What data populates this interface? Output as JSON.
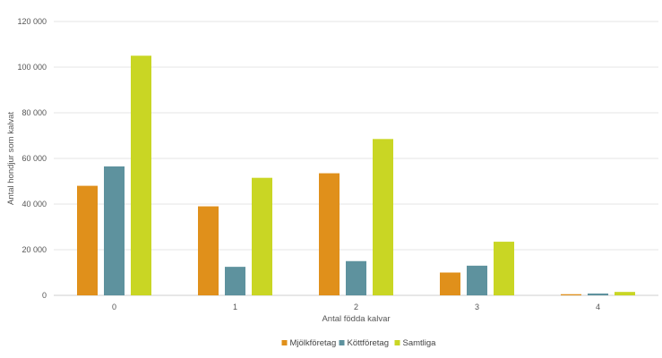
{
  "chart_data": {
    "type": "bar",
    "categories": [
      "0",
      "1",
      "2",
      "3",
      "4"
    ],
    "series": [
      {
        "name": "Mjölkföretag",
        "color": "#e0901b",
        "values": [
          48000,
          39000,
          53500,
          10000,
          500
        ]
      },
      {
        "name": "Köttföretag",
        "color": "#5e929e",
        "values": [
          56500,
          12500,
          15000,
          13000,
          800
        ]
      },
      {
        "name": "Samtliga",
        "color": "#c9d624",
        "values": [
          105000,
          51500,
          68500,
          23500,
          1500
        ]
      }
    ],
    "xlabel": "Antal födda kalvar",
    "ylabel": "Antal hondjur som kalvat",
    "ylim": [
      0,
      120000
    ],
    "yticks": [
      0,
      20000,
      40000,
      60000,
      80000,
      100000,
      120000
    ],
    "ytick_labels": [
      "0",
      "20 000",
      "40 000",
      "60 000",
      "80 000",
      "100 000",
      "120 000"
    ],
    "grid": true,
    "legend_position": "bottom-center"
  }
}
